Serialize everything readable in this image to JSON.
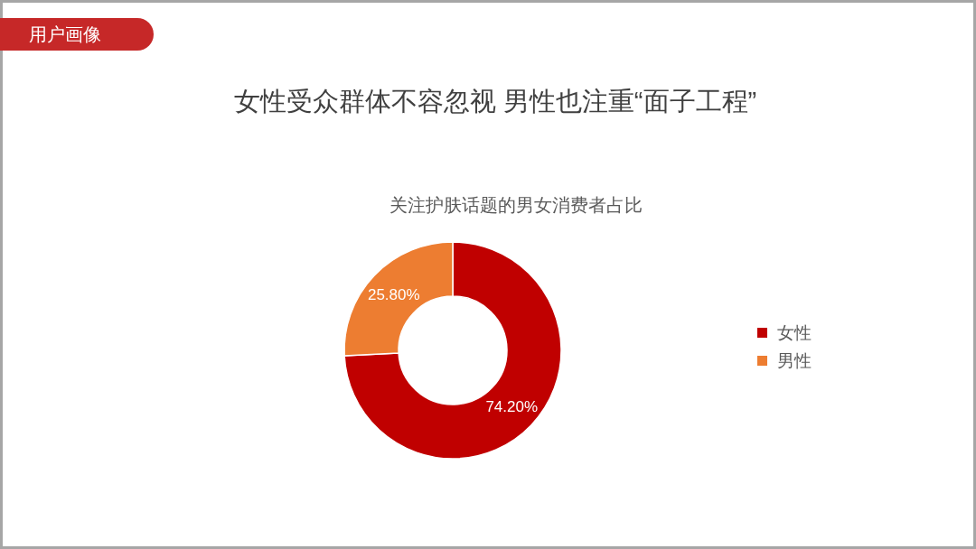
{
  "chart_data": {
    "type": "donut",
    "title": "女性受众群体不容忽视 男性也注重“面子工程”",
    "subtitle": "关注护肤话题的男女消费者占比",
    "annotations": [
      "用户画像"
    ],
    "categories": [
      "女性",
      "男性"
    ],
    "values": [
      74.2,
      25.8
    ],
    "colors": [
      "#c00000",
      "#ed7d31"
    ],
    "value_labels": [
      "74.20%",
      "25.80%"
    ],
    "legend": "right"
  }
}
